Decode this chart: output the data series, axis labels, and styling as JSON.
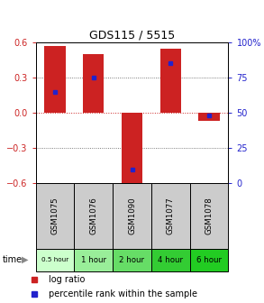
{
  "title": "GDS115 / 5515",
  "samples": [
    "GSM1075",
    "GSM1076",
    "GSM1090",
    "GSM1077",
    "GSM1078"
  ],
  "time_labels": [
    "0.5 hour",
    "1 hour",
    "2 hour",
    "4 hour",
    "6 hour"
  ],
  "log_ratios": [
    0.57,
    0.5,
    -0.62,
    0.55,
    -0.07
  ],
  "percentile_ranks": [
    65,
    75,
    10,
    85,
    48
  ],
  "ylim": [
    -0.6,
    0.6
  ],
  "yticks_left": [
    -0.6,
    -0.3,
    0,
    0.3,
    0.6
  ],
  "yticks_right_vals": [
    0,
    25,
    50,
    75,
    100
  ],
  "yticks_right_labels": [
    "0",
    "25",
    "50",
    "75",
    "100%"
  ],
  "bar_color": "#cc2222",
  "dot_color": "#2222cc",
  "bg_color": "#ffffff",
  "zero_line_color": "#cc2222",
  "sample_box_color": "#cccccc",
  "time_box_colors": [
    "#ccffcc",
    "#99ee99",
    "#66dd66",
    "#33cc33",
    "#22cc22"
  ],
  "fig_w": 2.93,
  "fig_h": 3.36
}
